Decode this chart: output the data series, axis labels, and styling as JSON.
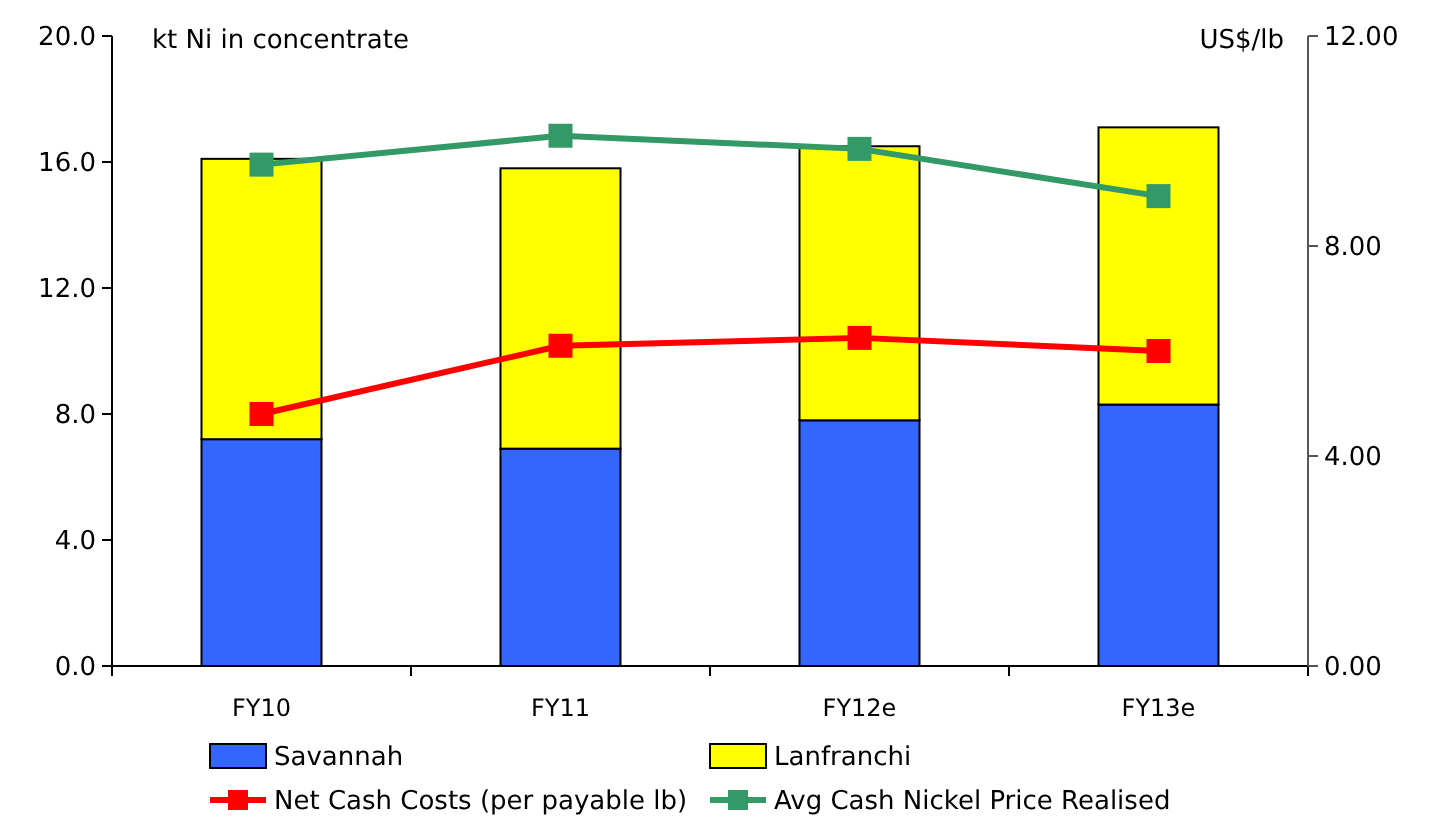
{
  "chart_data": {
    "type": "bar",
    "stacked": true,
    "ylabel": "kt Ni in concentrate",
    "y2label": "US$/lb",
    "categories": [
      "FY10",
      "FY11",
      "FY12e",
      "FY13e"
    ],
    "series": [
      {
        "name": "Savannah",
        "color": "#3366ff",
        "values": [
          7.2,
          6.9,
          7.8,
          8.3
        ]
      },
      {
        "name": "Lanfranchi",
        "color": "#ffff00",
        "values": [
          8.9,
          8.9,
          8.7,
          8.8
        ]
      },
      {
        "name": "Net Cash Costs (per payable lb)",
        "type": "line",
        "axis": "y2",
        "color": "#ff0000",
        "marker": "square",
        "values": [
          4.8,
          6.1,
          6.25,
          6.0
        ]
      },
      {
        "name": "Avg Cash Nickel Price Realised",
        "type": "line",
        "axis": "y2",
        "color": "#339966",
        "marker": "square",
        "values": [
          9.55,
          10.1,
          9.85,
          8.95
        ]
      }
    ],
    "ylim": [
      0,
      20
    ],
    "yticks": [
      {
        "value": 0,
        "label": "0.0"
      },
      {
        "value": 4,
        "label": "4.0"
      },
      {
        "value": 8,
        "label": "8.0"
      },
      {
        "value": 12,
        "label": "12.0"
      },
      {
        "value": 16,
        "label": "16.0"
      },
      {
        "value": 20,
        "label": "20.0"
      }
    ],
    "y2lim": [
      0,
      12
    ],
    "y2ticks": [
      {
        "value": 0,
        "label": "0.00"
      },
      {
        "value": 4,
        "label": "4.00"
      },
      {
        "value": 8,
        "label": "8.00"
      },
      {
        "value": 12,
        "label": "12.00"
      }
    ],
    "legend": "bottom"
  }
}
